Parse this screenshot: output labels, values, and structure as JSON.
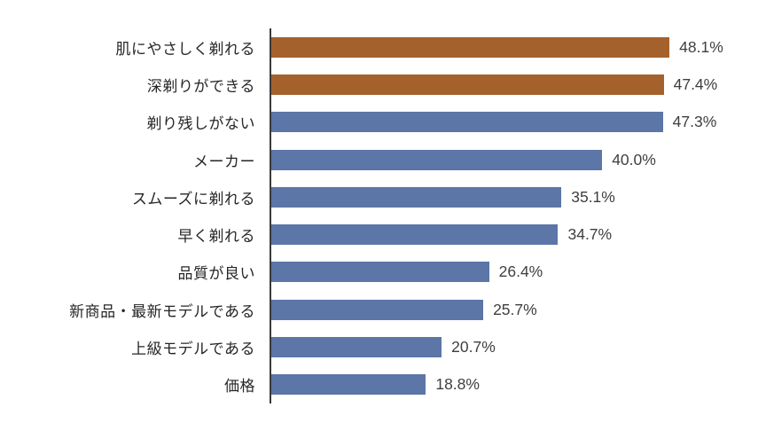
{
  "chart_data": {
    "type": "bar",
    "orientation": "horizontal",
    "title": "",
    "xlabel": "",
    "ylabel": "",
    "grid": false,
    "legend": false,
    "axis_color": "#3a3a3a",
    "highlight_color": "#a5612c",
    "default_color": "#5b76a7",
    "label_color": "#262626",
    "value_label_color": "#3f3f3f",
    "xlim": [
      0,
      50
    ],
    "categories": [
      "肌にやさしく剃れる",
      "深剃りができる",
      "剃り残しがない",
      "メーカー",
      "スムーズに剃れる",
      "早く剃れる",
      "品質が良い",
      "新商品・最新モデルである",
      "上級モデルである",
      "価格"
    ],
    "values": [
      48.1,
      47.4,
      47.3,
      40.0,
      35.1,
      34.7,
      26.4,
      25.7,
      20.7,
      18.8
    ],
    "value_labels": [
      "48.1%",
      "47.4%",
      "47.3%",
      "40.0%",
      "35.1%",
      "34.7%",
      "26.4%",
      "25.7%",
      "20.7%",
      "18.8%"
    ],
    "bar_colors": [
      "#a5612c",
      "#a5612c",
      "#5b76a7",
      "#5b76a7",
      "#5b76a7",
      "#5b76a7",
      "#5b76a7",
      "#5b76a7",
      "#5b76a7",
      "#5b76a7"
    ]
  }
}
